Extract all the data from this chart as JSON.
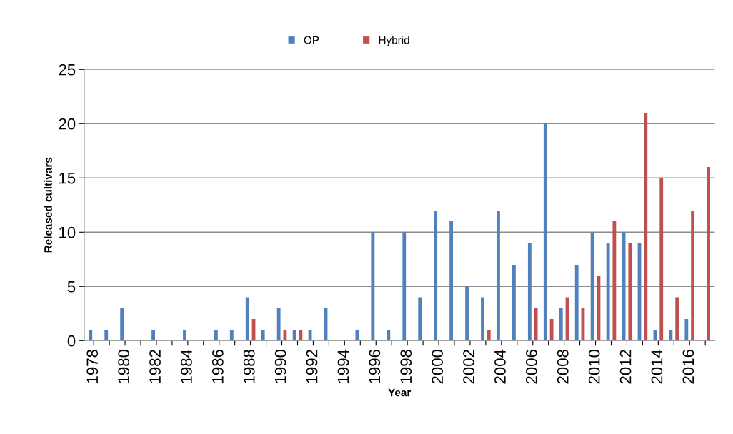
{
  "chart_data": {
    "type": "bar",
    "xlabel": "Year",
    "ylabel": "Released cultivars",
    "categories": [
      "1978",
      null,
      "1980",
      null,
      "1982",
      null,
      "1984",
      null,
      "1986",
      null,
      "1988",
      null,
      "1990",
      null,
      "1992",
      null,
      "1994",
      null,
      "1996",
      null,
      "1998",
      null,
      "2000",
      null,
      "2002",
      null,
      "2004",
      null,
      "2006",
      null,
      "2008",
      null,
      "2010",
      null,
      "2012",
      null,
      "2014",
      null,
      "2016",
      null
    ],
    "series": [
      {
        "name": "OP",
        "color": "#4f81bd",
        "values": [
          1,
          1,
          3,
          null,
          1,
          null,
          1,
          null,
          1,
          1,
          4,
          1,
          3,
          1,
          1,
          3,
          null,
          1,
          10,
          1,
          10,
          4,
          12,
          11,
          5,
          4,
          12,
          7,
          9,
          20,
          3,
          7,
          10,
          9,
          10,
          9,
          1,
          1,
          2,
          null
        ]
      },
      {
        "name": "Hybrid",
        "color": "#c0504d",
        "values": [
          null,
          null,
          null,
          null,
          null,
          null,
          null,
          null,
          null,
          null,
          2,
          null,
          1,
          1,
          null,
          null,
          null,
          null,
          null,
          null,
          null,
          null,
          null,
          null,
          null,
          1,
          null,
          null,
          3,
          2,
          4,
          3,
          6,
          11,
          9,
          21,
          15,
          4,
          12,
          16
        ]
      }
    ],
    "ylim": [
      0,
      25
    ],
    "yticks": [
      0,
      5,
      10,
      15,
      20,
      25
    ],
    "grid": "y",
    "legend": "top"
  }
}
